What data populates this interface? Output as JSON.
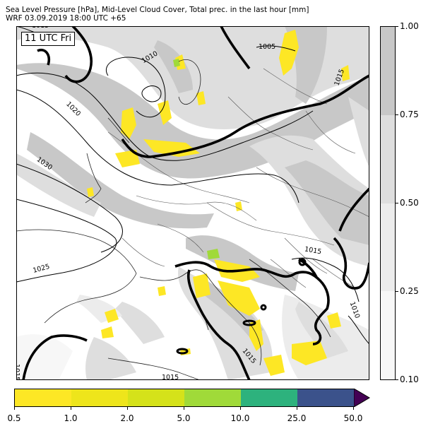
{
  "title": {
    "line1": "Sea Level Pressure [hPa], Mid-Level Cloud Cover, Total prec. in the last hour [mm]",
    "line2": "WRF 03.09.2019 18:00 UTC +65"
  },
  "map": {
    "valid_time": "11 UTC Fri",
    "isobar_labels": [
      "1010",
      "1005",
      "1015",
      "1020",
      "1030",
      "1025",
      "1015",
      "1015",
      "1015",
      "1010",
      "1015",
      "1015"
    ],
    "high_pressure_isobar_hpa": 1015
  },
  "cloud_colorbar": {
    "ticks": [
      "1.00",
      "0.75",
      "0.50",
      "0.25",
      "0.10"
    ],
    "bands": [
      {
        "from": 0.75,
        "to": 1.0,
        "color": "#c8c8c8"
      },
      {
        "from": 0.5,
        "to": 0.75,
        "color": "#dedede"
      },
      {
        "from": 0.25,
        "to": 0.5,
        "color": "#ececec"
      },
      {
        "from": 0.1,
        "to": 0.25,
        "color": "#f7f7f7"
      }
    ]
  },
  "precip_colorbar": {
    "ticks": [
      "0.5",
      "1.0",
      "2.0",
      "5.0",
      "10.0",
      "25.0",
      "50.0"
    ],
    "colors": [
      "#fde725",
      "#eee51b",
      "#d5e21a",
      "#a0da39",
      "#2db27d",
      "#3b528b",
      "#440154"
    ],
    "extend": "max"
  }
}
